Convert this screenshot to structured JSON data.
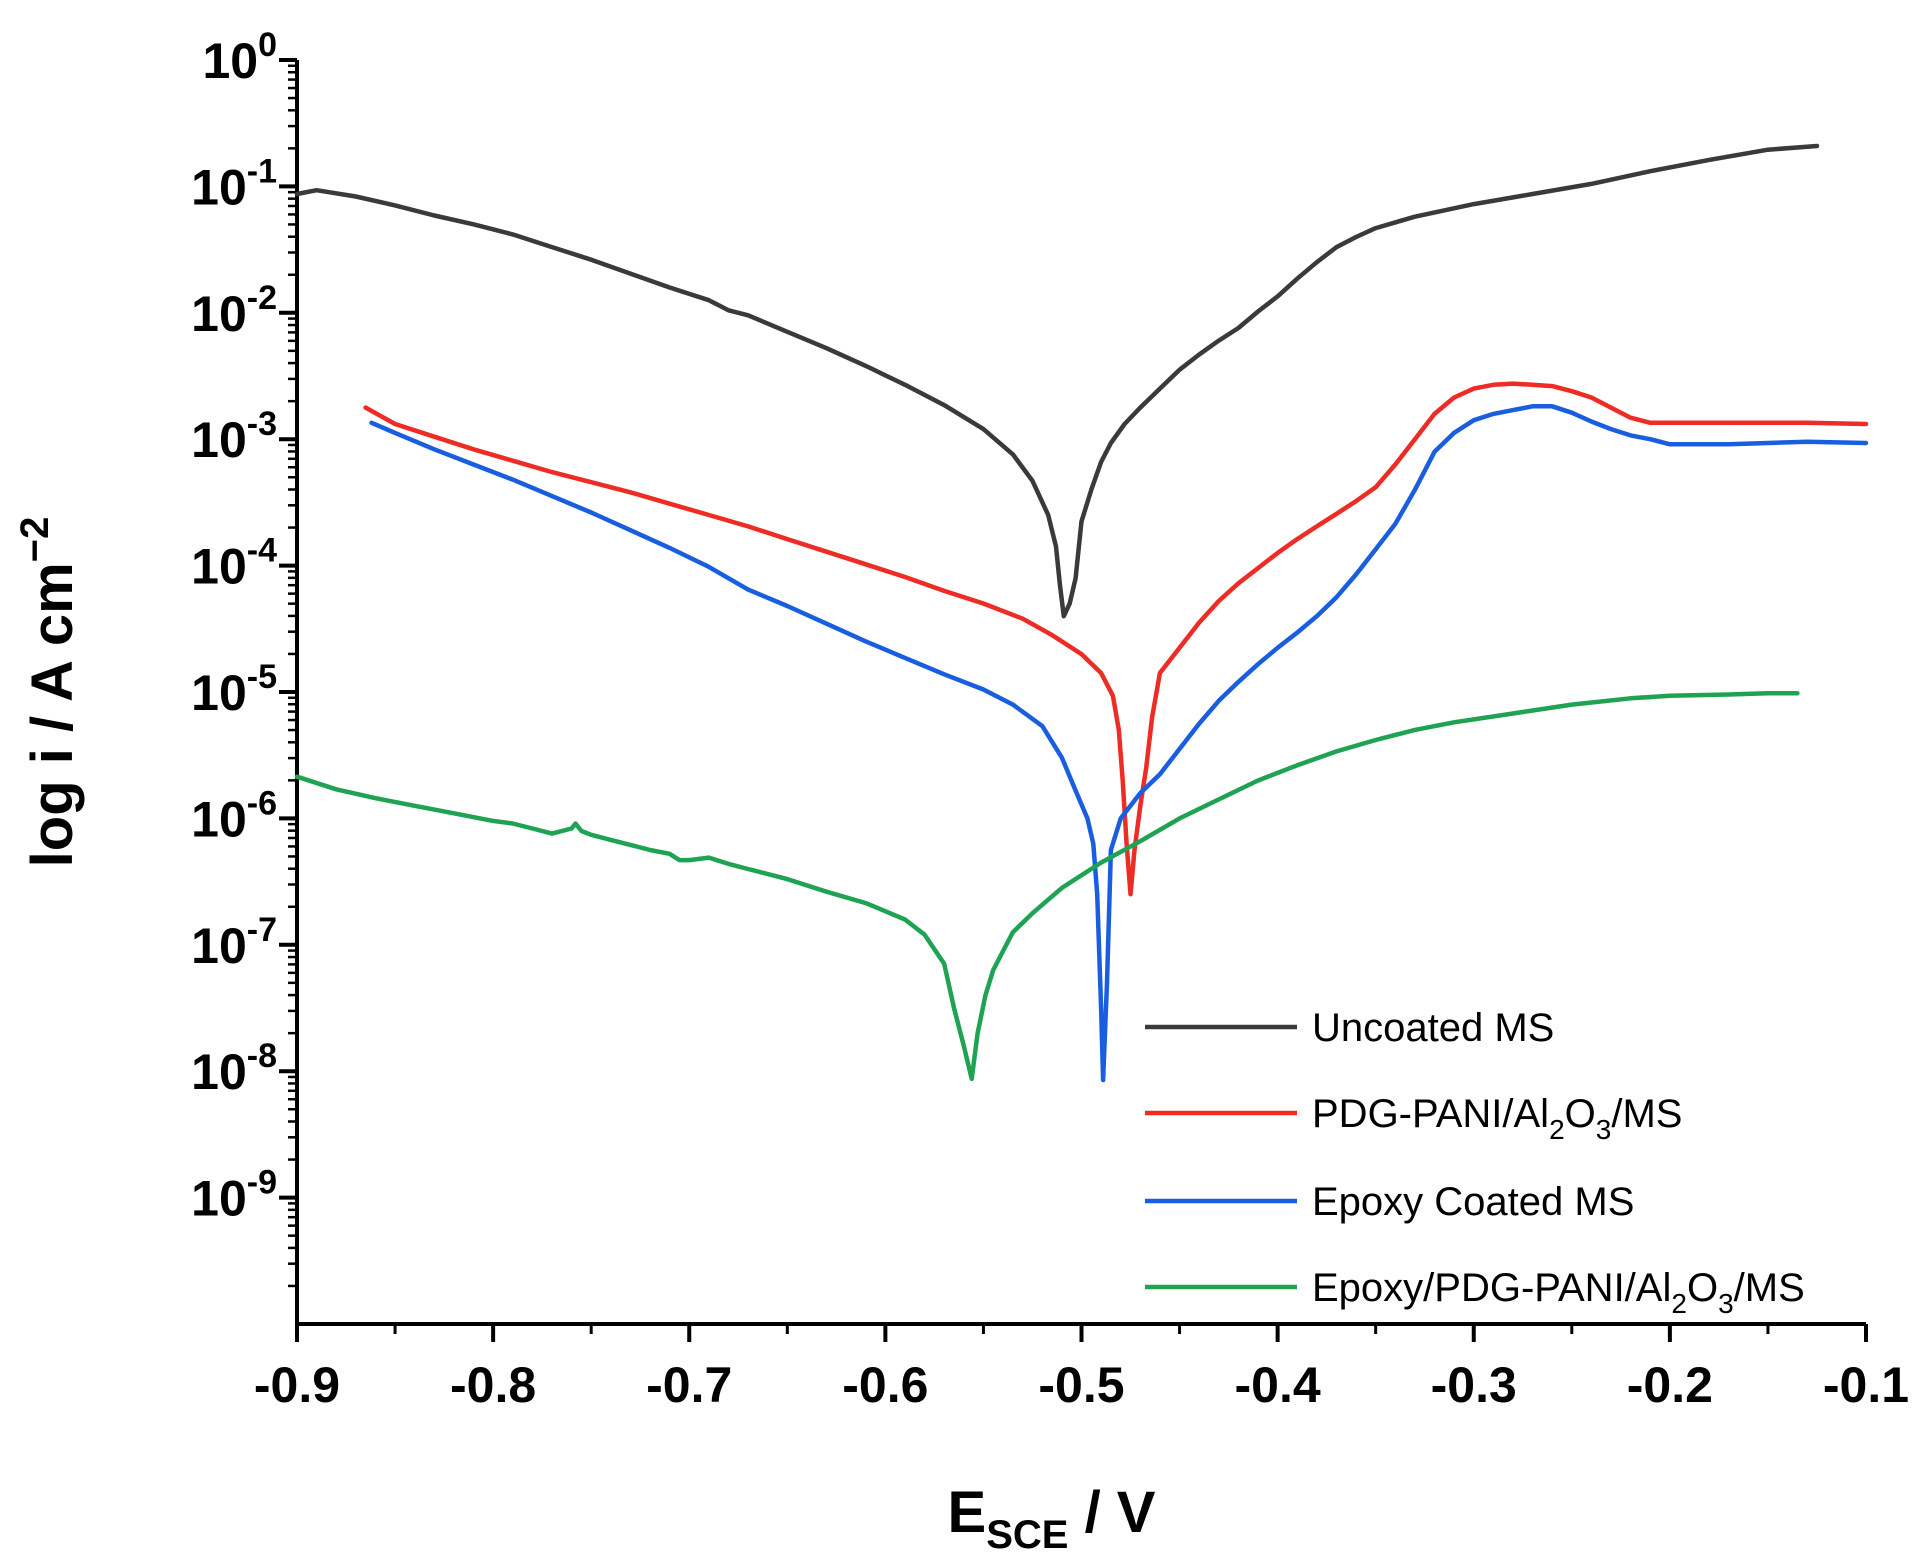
{
  "chart_data": {
    "type": "line",
    "xlabel": {
      "main": "E",
      "sub": "SCE",
      "rest": " / V"
    },
    "ylabel": {
      "main": "log i / A cm",
      "sup": "−2"
    },
    "xlim": [
      -0.9,
      -0.1
    ],
    "ylim_log10": [
      -10,
      0
    ],
    "x_ticks": [
      {
        "value": -0.9,
        "label": "-0.9"
      },
      {
        "value": -0.8,
        "label": "-0.8"
      },
      {
        "value": -0.7,
        "label": "-0.7"
      },
      {
        "value": -0.6,
        "label": "-0.6"
      },
      {
        "value": -0.5,
        "label": "-0.5"
      },
      {
        "value": -0.4,
        "label": "-0.4"
      },
      {
        "value": -0.3,
        "label": "-0.3"
      },
      {
        "value": -0.2,
        "label": "-0.2"
      },
      {
        "value": -0.1,
        "label": "-0.1"
      }
    ],
    "y_ticks": [
      {
        "exp": 0,
        "base": "10",
        "sup": "0"
      },
      {
        "exp": -1,
        "base": "10",
        "sup": "-1"
      },
      {
        "exp": -2,
        "base": "10",
        "sup": "-2"
      },
      {
        "exp": -3,
        "base": "10",
        "sup": "-3"
      },
      {
        "exp": -4,
        "base": "10",
        "sup": "-4"
      },
      {
        "exp": -5,
        "base": "10",
        "sup": "-5"
      },
      {
        "exp": -6,
        "base": "10",
        "sup": "-6"
      },
      {
        "exp": -7,
        "base": "10",
        "sup": "-7"
      },
      {
        "exp": -8,
        "base": "10",
        "sup": "-8"
      },
      {
        "exp": -9,
        "base": "10",
        "sup": "-9"
      }
    ],
    "legend_position": "bottom-right",
    "series": [
      {
        "name": "Uncoated MS",
        "legend_parts": [
          {
            "t": "Uncoated MS"
          }
        ],
        "color": "#3a3a3a",
        "points": [
          [
            -0.9,
            -1.06
          ],
          [
            -0.89,
            -1.03
          ],
          [
            -0.87,
            -1.08
          ],
          [
            -0.85,
            -1.15
          ],
          [
            -0.83,
            -1.23
          ],
          [
            -0.81,
            -1.3
          ],
          [
            -0.79,
            -1.38
          ],
          [
            -0.77,
            -1.48
          ],
          [
            -0.75,
            -1.58
          ],
          [
            -0.73,
            -1.69
          ],
          [
            -0.71,
            -1.8
          ],
          [
            -0.69,
            -1.9
          ],
          [
            -0.68,
            -1.98
          ],
          [
            -0.67,
            -2.02
          ],
          [
            -0.65,
            -2.15
          ],
          [
            -0.63,
            -2.28
          ],
          [
            -0.61,
            -2.42
          ],
          [
            -0.59,
            -2.57
          ],
          [
            -0.57,
            -2.73
          ],
          [
            -0.55,
            -2.92
          ],
          [
            -0.535,
            -3.12
          ],
          [
            -0.525,
            -3.33
          ],
          [
            -0.517,
            -3.6
          ],
          [
            -0.513,
            -3.85
          ],
          [
            -0.511,
            -4.15
          ],
          [
            -0.509,
            -4.4
          ],
          [
            -0.506,
            -4.3
          ],
          [
            -0.503,
            -4.1
          ],
          [
            -0.5,
            -3.65
          ],
          [
            -0.495,
            -3.4
          ],
          [
            -0.49,
            -3.18
          ],
          [
            -0.485,
            -3.03
          ],
          [
            -0.478,
            -2.88
          ],
          [
            -0.47,
            -2.75
          ],
          [
            -0.46,
            -2.6
          ],
          [
            -0.45,
            -2.45
          ],
          [
            -0.44,
            -2.33
          ],
          [
            -0.43,
            -2.22
          ],
          [
            -0.42,
            -2.12
          ],
          [
            -0.41,
            -1.99
          ],
          [
            -0.4,
            -1.87
          ],
          [
            -0.39,
            -1.73
          ],
          [
            -0.38,
            -1.6
          ],
          [
            -0.37,
            -1.48
          ],
          [
            -0.36,
            -1.4
          ],
          [
            -0.35,
            -1.33
          ],
          [
            -0.33,
            -1.24
          ],
          [
            -0.3,
            -1.14
          ],
          [
            -0.27,
            -1.06
          ],
          [
            -0.24,
            -0.98
          ],
          [
            -0.21,
            -0.88
          ],
          [
            -0.18,
            -0.79
          ],
          [
            -0.15,
            -0.71
          ],
          [
            -0.125,
            -0.68
          ]
        ]
      },
      {
        "name": "PDG-PANI/Al2O3/MS",
        "legend_parts": [
          {
            "t": "PDG-PANI/Al"
          },
          {
            "t": "2",
            "sub": true
          },
          {
            "t": "O"
          },
          {
            "t": "3",
            "sub": true
          },
          {
            "t": "/MS"
          }
        ],
        "color": "#ee2b24",
        "points": [
          [
            -0.865,
            -2.75
          ],
          [
            -0.85,
            -2.88
          ],
          [
            -0.83,
            -2.98
          ],
          [
            -0.81,
            -3.08
          ],
          [
            -0.79,
            -3.17
          ],
          [
            -0.77,
            -3.26
          ],
          [
            -0.75,
            -3.34
          ],
          [
            -0.73,
            -3.42
          ],
          [
            -0.71,
            -3.51
          ],
          [
            -0.69,
            -3.6
          ],
          [
            -0.67,
            -3.69
          ],
          [
            -0.65,
            -3.79
          ],
          [
            -0.63,
            -3.89
          ],
          [
            -0.61,
            -3.99
          ],
          [
            -0.59,
            -4.09
          ],
          [
            -0.57,
            -4.2
          ],
          [
            -0.55,
            -4.3
          ],
          [
            -0.53,
            -4.42
          ],
          [
            -0.515,
            -4.55
          ],
          [
            -0.5,
            -4.7
          ],
          [
            -0.49,
            -4.85
          ],
          [
            -0.484,
            -5.03
          ],
          [
            -0.481,
            -5.3
          ],
          [
            -0.479,
            -5.7
          ],
          [
            -0.477,
            -6.2
          ],
          [
            -0.475,
            -6.6
          ],
          [
            -0.473,
            -6.25
          ],
          [
            -0.47,
            -5.9
          ],
          [
            -0.467,
            -5.6
          ],
          [
            -0.464,
            -5.2
          ],
          [
            -0.46,
            -4.85
          ],
          [
            -0.45,
            -4.65
          ],
          [
            -0.44,
            -4.45
          ],
          [
            -0.43,
            -4.28
          ],
          [
            -0.42,
            -4.14
          ],
          [
            -0.41,
            -4.02
          ],
          [
            -0.4,
            -3.9
          ],
          [
            -0.39,
            -3.79
          ],
          [
            -0.38,
            -3.69
          ],
          [
            -0.37,
            -3.59
          ],
          [
            -0.36,
            -3.49
          ],
          [
            -0.35,
            -3.38
          ],
          [
            -0.34,
            -3.2
          ],
          [
            -0.33,
            -3.0
          ],
          [
            -0.32,
            -2.8
          ],
          [
            -0.31,
            -2.67
          ],
          [
            -0.3,
            -2.6
          ],
          [
            -0.29,
            -2.57
          ],
          [
            -0.28,
            -2.56
          ],
          [
            -0.27,
            -2.57
          ],
          [
            -0.26,
            -2.58
          ],
          [
            -0.25,
            -2.62
          ],
          [
            -0.24,
            -2.67
          ],
          [
            -0.23,
            -2.75
          ],
          [
            -0.22,
            -2.83
          ],
          [
            -0.21,
            -2.87
          ],
          [
            -0.19,
            -2.87
          ],
          [
            -0.16,
            -2.87
          ],
          [
            -0.13,
            -2.87
          ],
          [
            -0.1,
            -2.88
          ]
        ]
      },
      {
        "name": "Epoxy Coated MS",
        "legend_parts": [
          {
            "t": "Epoxy Coated MS"
          }
        ],
        "color": "#1a5ee0",
        "points": [
          [
            -0.862,
            -2.87
          ],
          [
            -0.85,
            -2.95
          ],
          [
            -0.83,
            -3.08
          ],
          [
            -0.81,
            -3.2
          ],
          [
            -0.79,
            -3.32
          ],
          [
            -0.77,
            -3.45
          ],
          [
            -0.75,
            -3.58
          ],
          [
            -0.73,
            -3.72
          ],
          [
            -0.71,
            -3.86
          ],
          [
            -0.69,
            -4.01
          ],
          [
            -0.67,
            -4.19
          ],
          [
            -0.65,
            -4.32
          ],
          [
            -0.63,
            -4.46
          ],
          [
            -0.61,
            -4.6
          ],
          [
            -0.59,
            -4.73
          ],
          [
            -0.57,
            -4.86
          ],
          [
            -0.55,
            -4.98
          ],
          [
            -0.535,
            -5.1
          ],
          [
            -0.52,
            -5.27
          ],
          [
            -0.51,
            -5.52
          ],
          [
            -0.503,
            -5.78
          ],
          [
            -0.497,
            -6.0
          ],
          [
            -0.494,
            -6.2
          ],
          [
            -0.492,
            -6.6
          ],
          [
            -0.49,
            -7.5
          ],
          [
            -0.489,
            -8.07
          ],
          [
            -0.487,
            -7.3
          ],
          [
            -0.485,
            -6.25
          ],
          [
            -0.48,
            -6.0
          ],
          [
            -0.475,
            -5.9
          ],
          [
            -0.47,
            -5.8
          ],
          [
            -0.46,
            -5.65
          ],
          [
            -0.45,
            -5.45
          ],
          [
            -0.44,
            -5.25
          ],
          [
            -0.43,
            -5.07
          ],
          [
            -0.42,
            -4.92
          ],
          [
            -0.41,
            -4.78
          ],
          [
            -0.4,
            -4.65
          ],
          [
            -0.39,
            -4.53
          ],
          [
            -0.38,
            -4.4
          ],
          [
            -0.37,
            -4.25
          ],
          [
            -0.36,
            -4.07
          ],
          [
            -0.35,
            -3.87
          ],
          [
            -0.34,
            -3.67
          ],
          [
            -0.33,
            -3.4
          ],
          [
            -0.32,
            -3.1
          ],
          [
            -0.31,
            -2.95
          ],
          [
            -0.3,
            -2.85
          ],
          [
            -0.29,
            -2.8
          ],
          [
            -0.28,
            -2.77
          ],
          [
            -0.27,
            -2.74
          ],
          [
            -0.26,
            -2.74
          ],
          [
            -0.25,
            -2.79
          ],
          [
            -0.24,
            -2.86
          ],
          [
            -0.23,
            -2.92
          ],
          [
            -0.22,
            -2.97
          ],
          [
            -0.21,
            -3.0
          ],
          [
            -0.2,
            -3.04
          ],
          [
            -0.19,
            -3.04
          ],
          [
            -0.17,
            -3.04
          ],
          [
            -0.15,
            -3.03
          ],
          [
            -0.13,
            -3.02
          ],
          [
            -0.1,
            -3.03
          ]
        ]
      },
      {
        "name": "Epoxy/PDG-PANI/Al2O3/MS",
        "legend_parts": [
          {
            "t": "Epoxy/PDG-PANI/Al"
          },
          {
            "t": "2",
            "sub": true
          },
          {
            "t": "O"
          },
          {
            "t": "3",
            "sub": true
          },
          {
            "t": "/MS"
          }
        ],
        "color": "#1fa352",
        "points": [
          [
            -0.9,
            -5.67
          ],
          [
            -0.88,
            -5.77
          ],
          [
            -0.86,
            -5.84
          ],
          [
            -0.84,
            -5.9
          ],
          [
            -0.82,
            -5.96
          ],
          [
            -0.8,
            -6.02
          ],
          [
            -0.79,
            -6.04
          ],
          [
            -0.78,
            -6.08
          ],
          [
            -0.77,
            -6.12
          ],
          [
            -0.76,
            -6.08
          ],
          [
            -0.758,
            -6.04
          ],
          [
            -0.755,
            -6.1
          ],
          [
            -0.75,
            -6.13
          ],
          [
            -0.74,
            -6.17
          ],
          [
            -0.73,
            -6.21
          ],
          [
            -0.72,
            -6.25
          ],
          [
            -0.71,
            -6.28
          ],
          [
            -0.705,
            -6.33
          ],
          [
            -0.7,
            -6.33
          ],
          [
            -0.69,
            -6.31
          ],
          [
            -0.68,
            -6.36
          ],
          [
            -0.67,
            -6.4
          ],
          [
            -0.65,
            -6.48
          ],
          [
            -0.63,
            -6.58
          ],
          [
            -0.61,
            -6.67
          ],
          [
            -0.59,
            -6.8
          ],
          [
            -0.58,
            -6.92
          ],
          [
            -0.57,
            -7.15
          ],
          [
            -0.565,
            -7.5
          ],
          [
            -0.56,
            -7.8
          ],
          [
            -0.556,
            -8.06
          ],
          [
            -0.553,
            -7.7
          ],
          [
            -0.549,
            -7.4
          ],
          [
            -0.545,
            -7.2
          ],
          [
            -0.54,
            -7.05
          ],
          [
            -0.535,
            -6.9
          ],
          [
            -0.525,
            -6.75
          ],
          [
            -0.51,
            -6.55
          ],
          [
            -0.49,
            -6.35
          ],
          [
            -0.47,
            -6.18
          ],
          [
            -0.45,
            -6.0
          ],
          [
            -0.43,
            -5.85
          ],
          [
            -0.41,
            -5.7
          ],
          [
            -0.39,
            -5.58
          ],
          [
            -0.37,
            -5.47
          ],
          [
            -0.35,
            -5.38
          ],
          [
            -0.33,
            -5.3
          ],
          [
            -0.31,
            -5.24
          ],
          [
            -0.28,
            -5.17
          ],
          [
            -0.25,
            -5.1
          ],
          [
            -0.22,
            -5.05
          ],
          [
            -0.2,
            -5.03
          ],
          [
            -0.17,
            -5.02
          ],
          [
            -0.15,
            -5.01
          ],
          [
            -0.135,
            -5.01
          ]
        ]
      }
    ]
  }
}
